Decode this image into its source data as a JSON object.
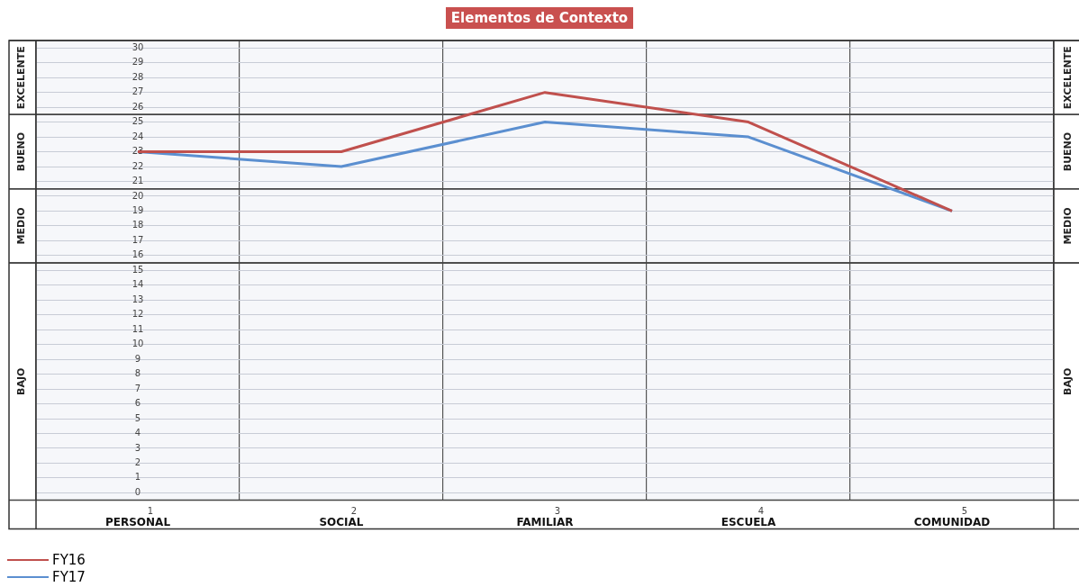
{
  "chart_data": {
    "type": "line",
    "title": "Elementos de Contexto",
    "categories": [
      "PERSONAL",
      "SOCIAL",
      "FAMILIAR",
      "ESCUELA",
      "COMUNIDAD"
    ],
    "series": [
      {
        "name": "FY16",
        "color": "#c0504d",
        "values": [
          23,
          23,
          27,
          25,
          19
        ]
      },
      {
        "name": "FY17",
        "color": "#5b8fd0",
        "values": [
          23,
          22,
          25,
          24,
          19
        ]
      }
    ],
    "ylim": [
      -0.5,
      30.5
    ],
    "yticks": [
      0,
      1,
      2,
      3,
      4,
      5,
      6,
      7,
      8,
      9,
      10,
      11,
      12,
      13,
      14,
      15,
      16,
      17,
      18,
      19,
      20,
      21,
      22,
      23,
      24,
      25,
      26,
      27,
      28,
      29,
      30
    ],
    "bands": [
      {
        "axis": "y",
        "from": -0.5,
        "to": 15.5,
        "label": "BAJO",
        "color": "#f6f7fa"
      },
      {
        "axis": "y",
        "from": 15.5,
        "to": 20.5,
        "label": "MEDIO",
        "color": "#f6f7fa"
      },
      {
        "axis": "y",
        "from": 20.5,
        "to": 25.5,
        "label": "BUENO",
        "color": "#f6f7fa"
      },
      {
        "axis": "y",
        "from": 25.5,
        "to": 30.5,
        "label": "EXCELENTE",
        "color": "#f6f7fa"
      }
    ],
    "annotations": [
      "1",
      "2",
      "3",
      "4",
      "5"
    ],
    "grid": true,
    "legend": "bottom left"
  }
}
